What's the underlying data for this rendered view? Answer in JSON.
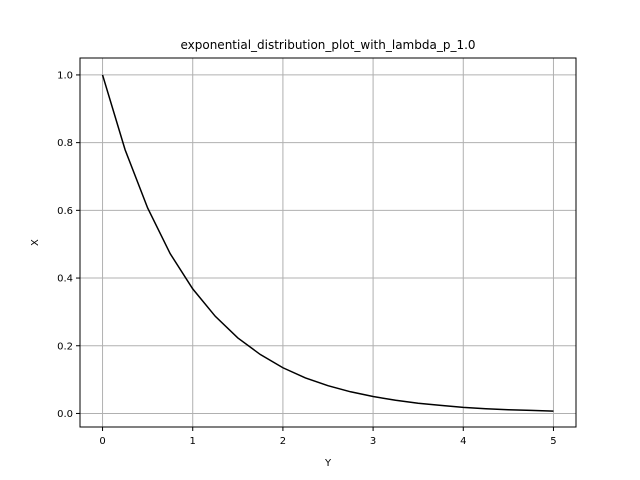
{
  "chart_data": {
    "type": "line",
    "title": "exponential_distribution_plot_with_lambda_p_1.0",
    "xlabel": "Y",
    "ylabel": "X",
    "xlim": [
      -0.25,
      5.25
    ],
    "ylim": [
      -0.04,
      1.05
    ],
    "x_ticks": [
      0,
      1,
      2,
      3,
      4,
      5
    ],
    "y_ticks": [
      0.0,
      0.2,
      0.4,
      0.6,
      0.8,
      1.0
    ],
    "x_tick_labels": [
      "0",
      "1",
      "2",
      "3",
      "4",
      "5"
    ],
    "y_tick_labels": [
      "0.0",
      "0.2",
      "0.4",
      "0.6",
      "0.8",
      "1.0"
    ],
    "grid": true,
    "series": [
      {
        "color": "#000000",
        "x": [
          0,
          0.25,
          0.5,
          0.75,
          1.0,
          1.25,
          1.5,
          1.75,
          2.0,
          2.25,
          2.5,
          2.75,
          3.0,
          3.25,
          3.5,
          3.75,
          4.0,
          4.25,
          4.5,
          4.75,
          5.0
        ],
        "y": [
          1.0,
          0.779,
          0.607,
          0.472,
          0.368,
          0.287,
          0.223,
          0.174,
          0.135,
          0.105,
          0.082,
          0.064,
          0.05,
          0.039,
          0.03,
          0.024,
          0.018,
          0.014,
          0.011,
          0.009,
          0.007
        ]
      }
    ],
    "colors": {
      "grid": "#b0b0b0",
      "axes": "#000000",
      "line": "#000000",
      "background": "#ffffff"
    }
  }
}
